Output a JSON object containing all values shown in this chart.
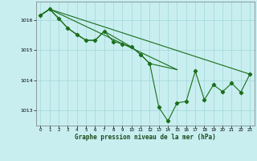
{
  "bg_color": "#c8eef0",
  "grid_color": "#a0d8d8",
  "line_color": "#1a6e1a",
  "xlabel": "Graphe pression niveau de la mer (hPa)",
  "xlim": [
    -0.5,
    23.5
  ],
  "ylim": [
    1012.5,
    1016.6
  ],
  "yticks": [
    1013,
    1014,
    1015,
    1016
  ],
  "xticks": [
    0,
    1,
    2,
    3,
    4,
    5,
    6,
    7,
    8,
    9,
    10,
    11,
    12,
    13,
    14,
    15,
    16,
    17,
    18,
    19,
    20,
    21,
    22,
    23
  ],
  "main_x": [
    0,
    1,
    2,
    3,
    4,
    5,
    6,
    7,
    8,
    9,
    10,
    11,
    12,
    13,
    14,
    15,
    16,
    17,
    18,
    19,
    20,
    21,
    22,
    23
  ],
  "main_y": [
    1016.15,
    1016.35,
    1016.05,
    1015.72,
    1015.5,
    1015.32,
    1015.32,
    1015.62,
    1015.28,
    1015.2,
    1015.1,
    1014.85,
    1014.55,
    1013.1,
    1012.65,
    1013.25,
    1013.3,
    1014.3,
    1013.35,
    1013.85,
    1013.62,
    1013.9,
    1013.6,
    1014.2
  ],
  "trend1_x": [
    0,
    1,
    23
  ],
  "trend1_y": [
    1016.15,
    1016.35,
    1014.2
  ],
  "trend2_x": [
    0,
    1,
    15
  ],
  "trend2_y": [
    1016.15,
    1016.35,
    1014.35
  ],
  "trend3_x": [
    0,
    1,
    3,
    5,
    6,
    7,
    10,
    11,
    12,
    15
  ],
  "trend3_y": [
    1016.15,
    1016.35,
    1015.72,
    1015.32,
    1015.32,
    1015.62,
    1015.1,
    1014.85,
    1014.55,
    1014.35
  ]
}
